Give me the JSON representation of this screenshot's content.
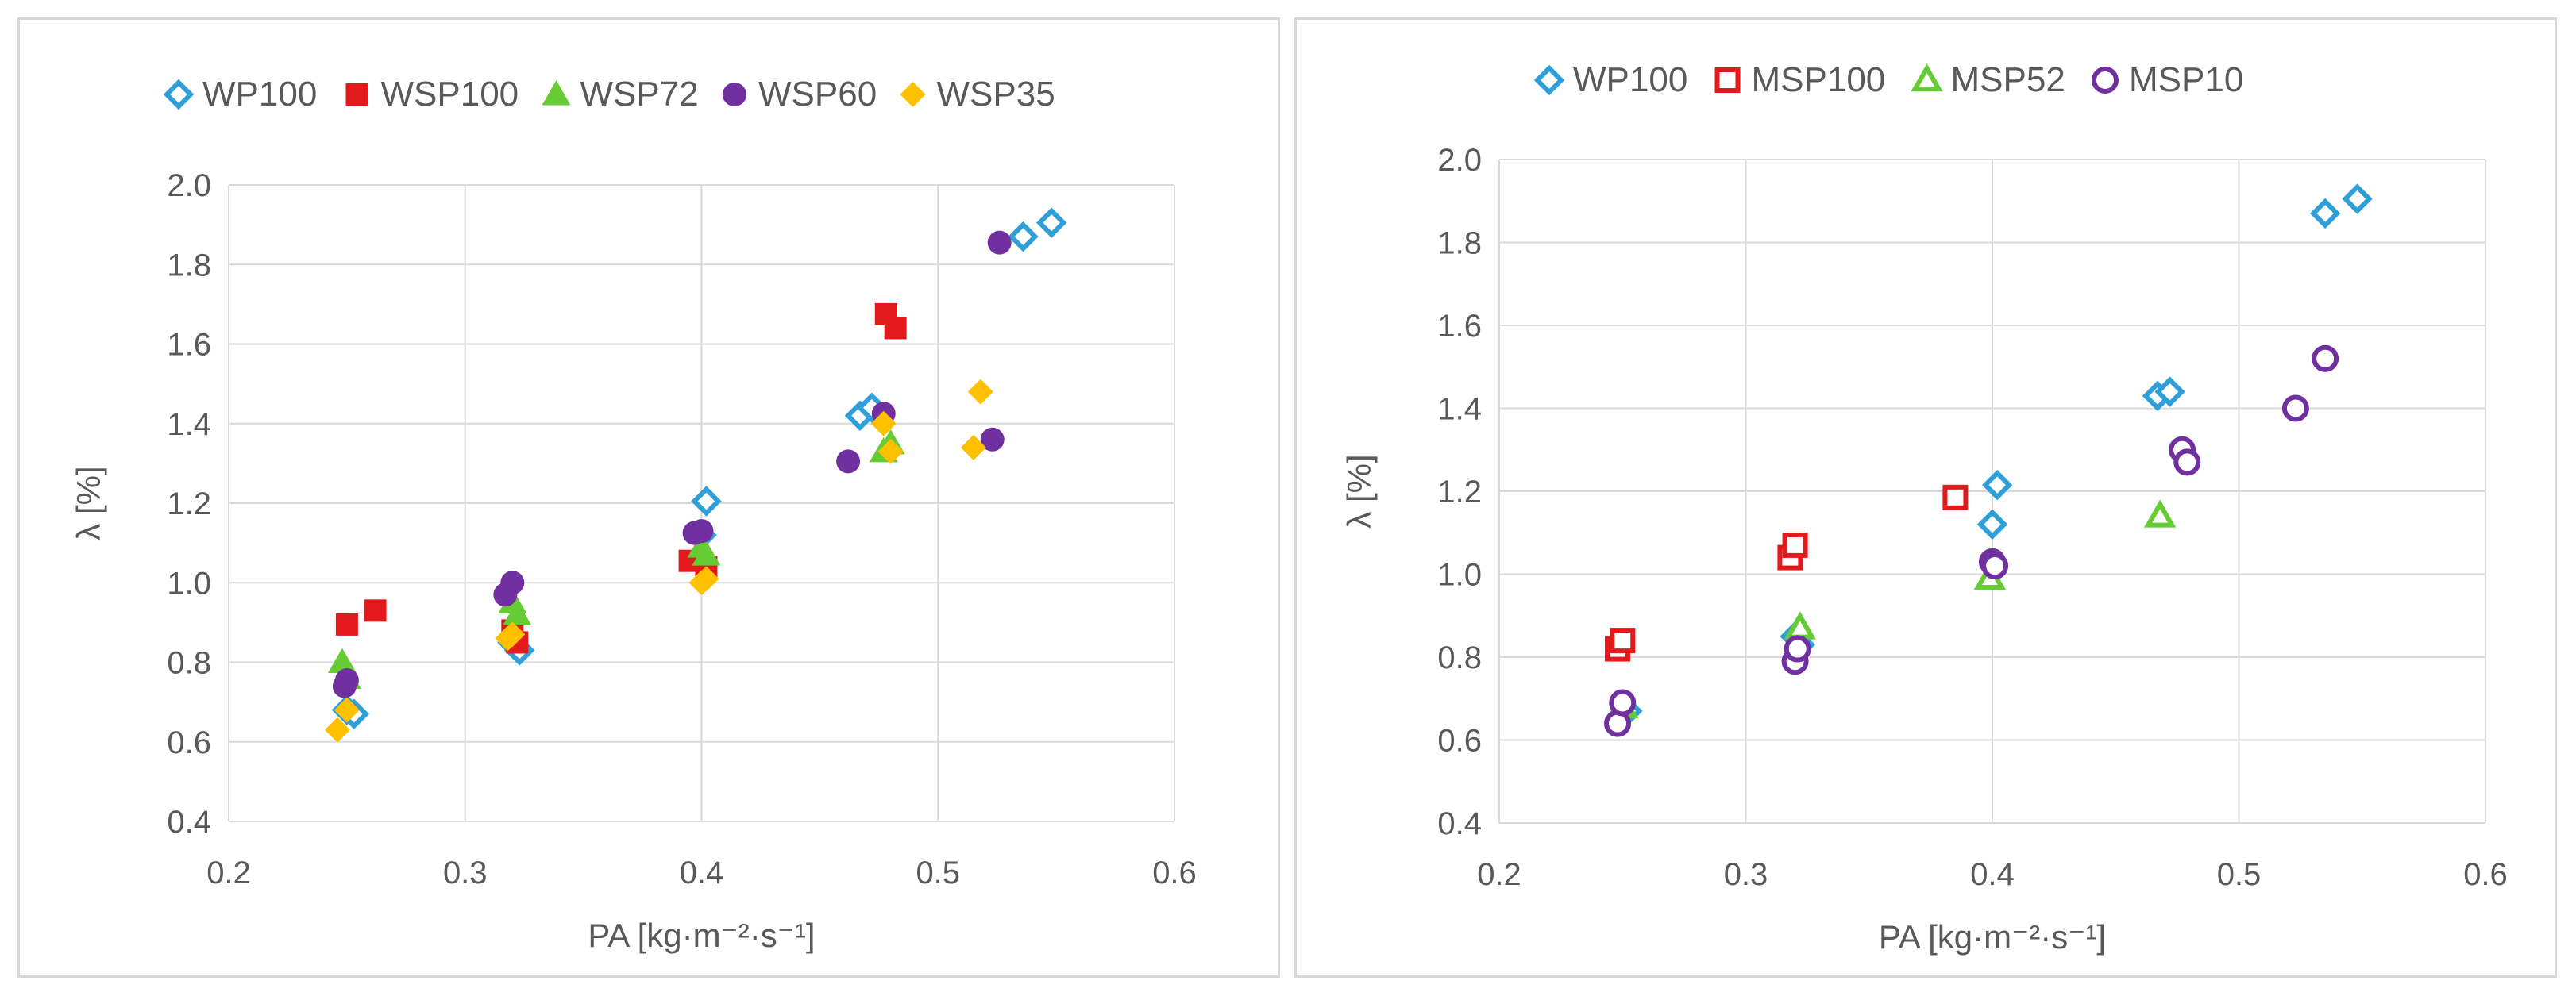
{
  "chart_data": [
    {
      "type": "scatter",
      "title": "",
      "xlabel": "PA [kg·m⁻²·s⁻¹]",
      "ylabel": "λ [%]",
      "xlim": [
        0.2,
        0.6
      ],
      "ylim": [
        0.4,
        2.0
      ],
      "xticks": [
        0.2,
        0.3,
        0.4,
        0.5,
        0.6
      ],
      "yticks": [
        0.4,
        0.6,
        0.8,
        1.0,
        1.2,
        1.4,
        1.6,
        1.8,
        2.0
      ],
      "xtick_labels": [
        "0.2",
        "0.3",
        "0.4",
        "0.5",
        "0.6"
      ],
      "ytick_labels": [
        "0.4",
        "0.6",
        "0.8",
        "1.0",
        "1.2",
        "1.4",
        "1.6",
        "1.8",
        "2.0"
      ],
      "grid": true,
      "legend_position": "top",
      "series": [
        {
          "name": "WP100",
          "marker": "diamond-open",
          "color": "#2e9fd8",
          "x": [
            0.25,
            0.253,
            0.32,
            0.323,
            0.4,
            0.402,
            0.467,
            0.472,
            0.536,
            0.548
          ],
          "y": [
            0.68,
            0.67,
            0.85,
            0.83,
            1.12,
            1.205,
            1.42,
            1.44,
            1.87,
            1.905
          ]
        },
        {
          "name": "WSP100",
          "marker": "square-filled",
          "color": "#e31a1c",
          "x": [
            0.25,
            0.262,
            0.32,
            0.322,
            0.395,
            0.402,
            0.478,
            0.482
          ],
          "y": [
            0.895,
            0.93,
            0.88,
            0.85,
            1.055,
            1.04,
            1.675,
            1.64
          ]
        },
        {
          "name": "WSP72",
          "marker": "triangle-filled",
          "color": "#66cc33",
          "x": [
            0.248,
            0.25,
            0.32,
            0.322,
            0.4,
            0.402,
            0.477,
            0.48
          ],
          "y": [
            0.8,
            0.76,
            0.95,
            0.92,
            1.09,
            1.07,
            1.33,
            1.35
          ]
        },
        {
          "name": "WSP60",
          "marker": "circle-filled",
          "color": "#7030a0",
          "x": [
            0.249,
            0.25,
            0.317,
            0.32,
            0.397,
            0.4,
            0.462,
            0.477,
            0.523,
            0.526
          ],
          "y": [
            0.74,
            0.755,
            0.97,
            1.0,
            1.125,
            1.13,
            1.305,
            1.425,
            1.36,
            1.855
          ]
        },
        {
          "name": "WSP35",
          "marker": "diamond-filled",
          "color": "#ffc000",
          "x": [
            0.246,
            0.25,
            0.318,
            0.32,
            0.4,
            0.402,
            0.477,
            0.48,
            0.515,
            0.518
          ],
          "y": [
            0.63,
            0.68,
            0.86,
            0.87,
            1.0,
            1.01,
            1.4,
            1.33,
            1.34,
            1.48
          ]
        }
      ]
    },
    {
      "type": "scatter",
      "title": "",
      "xlabel": "PA [kg·m⁻²·s⁻¹]",
      "ylabel": "λ [%]",
      "xlim": [
        0.2,
        0.6
      ],
      "ylim": [
        0.4,
        2.0
      ],
      "xticks": [
        0.2,
        0.3,
        0.4,
        0.5,
        0.6
      ],
      "yticks": [
        0.4,
        0.6,
        0.8,
        1.0,
        1.2,
        1.4,
        1.6,
        1.8,
        2.0
      ],
      "xtick_labels": [
        "0.2",
        "0.3",
        "0.4",
        "0.5",
        "0.6"
      ],
      "ytick_labels": [
        "0.4",
        "0.6",
        "0.8",
        "1.0",
        "1.2",
        "1.4",
        "1.6",
        "1.8",
        "2.0"
      ],
      "grid": true,
      "legend_position": "top",
      "series": [
        {
          "name": "WP100",
          "marker": "diamond-open",
          "color": "#2e9fd8",
          "x": [
            0.25,
            0.252,
            0.32,
            0.322,
            0.4,
            0.402,
            0.467,
            0.472,
            0.535,
            0.548
          ],
          "y": [
            0.66,
            0.67,
            0.85,
            0.83,
            1.12,
            1.215,
            1.43,
            1.44,
            1.87,
            1.905
          ]
        },
        {
          "name": "MSP100",
          "marker": "square-open",
          "color": "#e31a1c",
          "x": [
            0.248,
            0.25,
            0.318,
            0.32,
            0.385
          ],
          "y": [
            0.82,
            0.84,
            1.04,
            1.07,
            1.185
          ]
        },
        {
          "name": "MSP52",
          "marker": "triangle-open",
          "color": "#66cc33",
          "x": [
            0.25,
            0.322,
            0.399,
            0.468
          ],
          "y": [
            0.68,
            0.87,
            0.99,
            1.14
          ]
        },
        {
          "name": "MSP10",
          "marker": "circle-open",
          "color": "#7030a0",
          "x": [
            0.248,
            0.25,
            0.32,
            0.321,
            0.4,
            0.401,
            0.477,
            0.479,
            0.523,
            0.535
          ],
          "y": [
            0.64,
            0.69,
            0.79,
            0.82,
            1.03,
            1.02,
            1.3,
            1.27,
            1.4,
            1.52
          ]
        }
      ]
    }
  ]
}
